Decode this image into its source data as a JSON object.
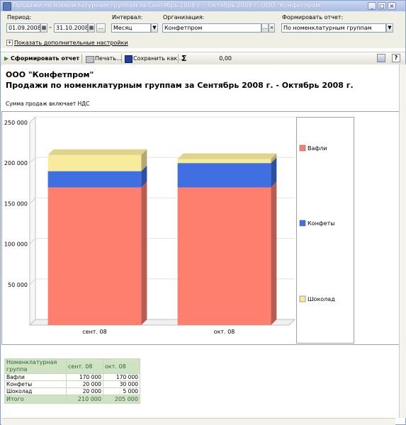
{
  "window": {
    "title": "Продажи по номенклатурным группам за Сентябрь 2008 г. - Октябрь 2008 г. ООО \"Конфетпром\""
  },
  "params": {
    "period_label": "Период:",
    "date_from": "01.09.2008",
    "dash": "–",
    "date_to": "31.10.2008",
    "interval_label": "Интервал:",
    "interval_value": "Месяц",
    "org_label": "Организация:",
    "org_value": "Конфетпром",
    "form_label": "Формировать отчет:",
    "form_value": "По номенклатурным группам",
    "extra_settings": "Показать дополнительные настройки",
    "ellipsis": "...",
    "clear": "×",
    "plus": "+"
  },
  "toolbar": {
    "generate": "Сформировать отчет",
    "print": "Печать...",
    "save": "Сохранить как...",
    "sigma": "Σ",
    "sum_value": "0,00",
    "help": "?"
  },
  "report": {
    "org_title": "ООО \"Конфетпром\"",
    "title": "Продажи по номенклатурным группам за Сентябрь 2008 г. - Октябрь 2008 г.",
    "vat_note": "Сумма продаж включает НДС"
  },
  "chart_data": {
    "type": "bar",
    "stacked": true,
    "categories": [
      "сент. 08",
      "окт. 08"
    ],
    "series": [
      {
        "name": "Вафли",
        "values": [
          170000,
          170000
        ],
        "color": "#ff7f6f"
      },
      {
        "name": "Конфеты",
        "values": [
          20000,
          30000
        ],
        "color": "#3f6fe0"
      },
      {
        "name": "Шоколад",
        "values": [
          20000,
          5000
        ],
        "color": "#f7ec9c"
      }
    ],
    "yticks": [
      "250 000",
      "200 000",
      "150 000",
      "100 000",
      "50 000"
    ],
    "ylim": [
      0,
      250000
    ],
    "legend": "right"
  },
  "table": {
    "header": [
      "Номенклатурная группа",
      "сент. 08",
      "окт. 08"
    ],
    "rows": [
      [
        "Вафли",
        "170 000",
        "170 000"
      ],
      [
        "Конфеты",
        "20 000",
        "30 000"
      ],
      [
        "Шоколад",
        "20 000",
        "5 000"
      ]
    ],
    "total": [
      "Итого",
      "210 000",
      "205 000"
    ]
  }
}
